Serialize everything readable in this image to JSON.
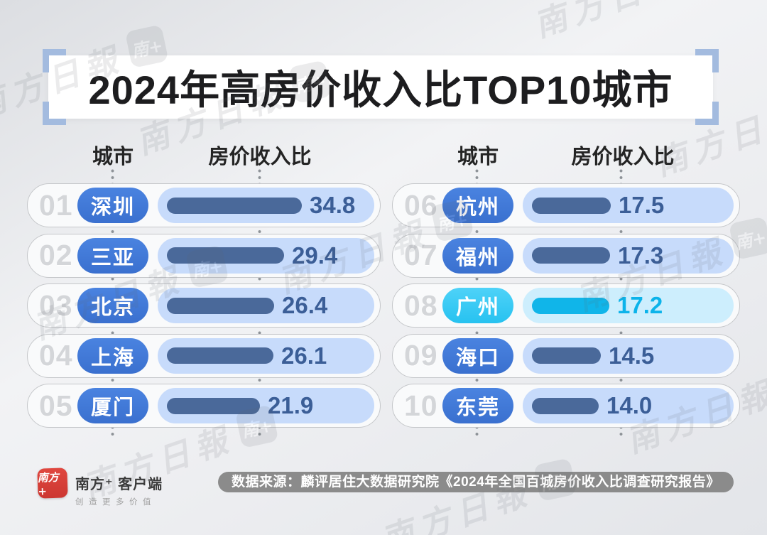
{
  "title": "2024年高房价收入比TOP10城市",
  "table": {
    "city_header": "城市",
    "ratio_header": "房价收入比",
    "rows": [
      {
        "rank": "01",
        "city": "深圳",
        "value": "34.8",
        "num": 34.8
      },
      {
        "rank": "02",
        "city": "三亚",
        "value": "29.4",
        "num": 29.4
      },
      {
        "rank": "03",
        "city": "北京",
        "value": "26.4",
        "num": 26.4
      },
      {
        "rank": "04",
        "city": "上海",
        "value": "26.1",
        "num": 26.1
      },
      {
        "rank": "05",
        "city": "厦门",
        "value": "21.9",
        "num": 21.9
      },
      {
        "rank": "06",
        "city": "杭州",
        "value": "17.5",
        "num": 17.5
      },
      {
        "rank": "07",
        "city": "福州",
        "value": "17.3",
        "num": 17.3
      },
      {
        "rank": "08",
        "city": "广州",
        "value": "17.2",
        "num": 17.2,
        "highlighted": true
      },
      {
        "rank": "09",
        "city": "海口",
        "value": "14.5",
        "num": 14.5
      },
      {
        "rank": "10",
        "city": "东莞",
        "value": "14.0",
        "num": 14.0
      }
    ]
  },
  "footer": {
    "logo_text": "南方+",
    "brand_name": "南方⁺ 客户端",
    "brand_tagline": "创造更多价值",
    "source_text": "数据来源：麟评居住大数据研究院《2024年全国百城房价收入比调查研究报告》"
  },
  "watermark": {
    "text": "南方日報",
    "seal_text": "南+"
  },
  "colors": {
    "city_pill_blue": "#3e78d8",
    "bar_blue": "#4a699a",
    "track_blue": "#c7dbfb",
    "value_blue": "#3b5e97",
    "highlight_cyan": "#10b5e9",
    "highlight_track": "#cdeefd",
    "bracket_blue": "#a3bbdf",
    "logo_red": "#d6403a",
    "source_pill_gray": "#8b8b8b"
  },
  "chart_data": {
    "type": "bar",
    "title": "2024年高房价收入比TOP10城市",
    "orientation": "horizontal",
    "categories": [
      "深圳",
      "三亚",
      "北京",
      "上海",
      "厦门",
      "杭州",
      "福州",
      "广州",
      "海口",
      "东莞"
    ],
    "ranks": [
      "01",
      "02",
      "03",
      "04",
      "05",
      "06",
      "07",
      "08",
      "09",
      "10"
    ],
    "values": [
      34.8,
      29.4,
      26.4,
      26.1,
      21.9,
      17.5,
      17.3,
      17.2,
      14.5,
      14.0
    ],
    "xlabel": "房价收入比",
    "ylabel": "城市",
    "xlim": [
      0,
      35
    ],
    "grid": false,
    "legend": false,
    "data_labels": true,
    "highlight": {
      "category": "广州",
      "value": 17.2,
      "color": "#10b5e9"
    },
    "source": "数据来源：麟评居住大数据研究院《2024年全国百城房价收入比调查研究报告》"
  }
}
